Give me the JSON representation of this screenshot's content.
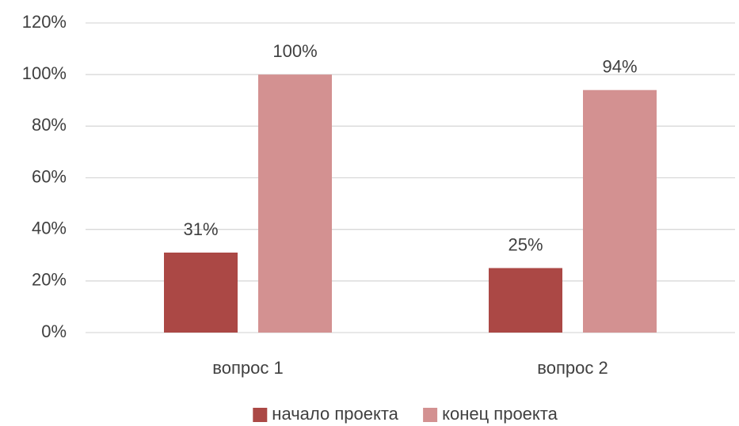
{
  "chart_data": {
    "type": "bar",
    "categories": [
      "вопрос 1",
      "вопрос 2"
    ],
    "series": [
      {
        "name": "начало проекта",
        "color": "#ab4845",
        "values": [
          31,
          25
        ],
        "value_labels": [
          "31%",
          "25%"
        ]
      },
      {
        "name": "конец проекта",
        "color": "#d39191",
        "values": [
          100,
          94
        ],
        "value_labels": [
          "100%",
          "94%"
        ]
      }
    ],
    "ylim": [
      0,
      120
    ],
    "yticks": [
      {
        "value": 0,
        "label": "0%"
      },
      {
        "value": 20,
        "label": "20%"
      },
      {
        "value": 40,
        "label": "40%"
      },
      {
        "value": 60,
        "label": "60%"
      },
      {
        "value": 80,
        "label": "80%"
      },
      {
        "value": 100,
        "label": "100%"
      },
      {
        "value": 120,
        "label": "120%"
      }
    ],
    "grid": true,
    "legend": "bottom"
  }
}
